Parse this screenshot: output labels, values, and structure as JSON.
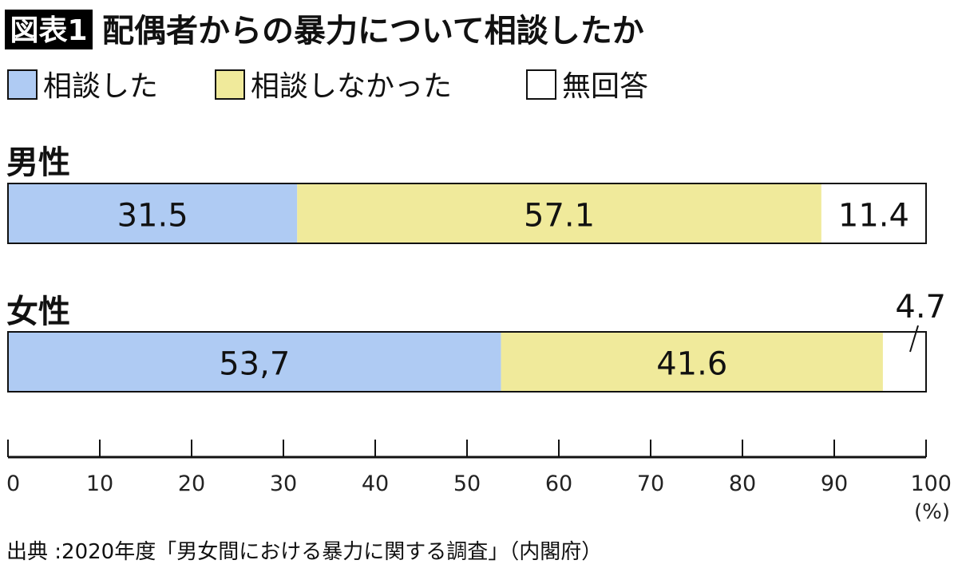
{
  "chart_data": {
    "type": "bar",
    "orientation": "horizontal",
    "stacked": true,
    "badge": "図表1",
    "title": "配偶者からの暴力について相談したか",
    "categories": [
      "男性",
      "女性"
    ],
    "series": [
      {
        "name": "相談した",
        "values": [
          31.5,
          53.7
        ],
        "labels": [
          "31.5",
          "53,7"
        ],
        "color": "#afcbf3"
      },
      {
        "name": "相談しなかった",
        "values": [
          57.1,
          41.6
        ],
        "labels": [
          "57.1",
          "41.6"
        ],
        "color": "#f0ea9b"
      },
      {
        "name": "無回答",
        "values": [
          11.4,
          4.7
        ],
        "labels": [
          "11.4",
          "4.7"
        ],
        "color": "#ffffff"
      }
    ],
    "xlim": [
      0,
      100
    ],
    "xticks": [
      "0",
      "10",
      "20",
      "30",
      "40",
      "50",
      "60",
      "70",
      "80",
      "90",
      "100"
    ],
    "xunit": "(%)",
    "legend": "top-left",
    "grid": false,
    "source": "出典 :2020年度「男女間における暴力に関する調査」（内閣府）"
  }
}
